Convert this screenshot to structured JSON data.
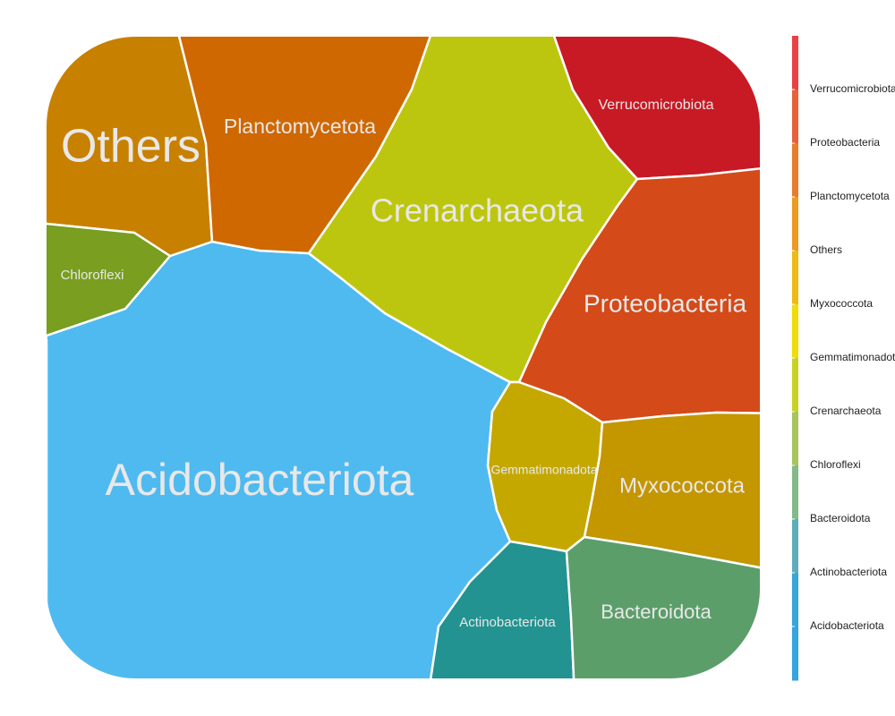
{
  "chart_data": {
    "type": "voronoi-treemap",
    "title": "",
    "cells": [
      {
        "name": "Acidobacteriota",
        "color": "#4FBAF0"
      },
      {
        "name": "Others",
        "color": "#C88000"
      },
      {
        "name": "Planctomycetota",
        "color": "#CF6800"
      },
      {
        "name": "Crenarchaeota",
        "color": "#BDC60E"
      },
      {
        "name": "Verrucomicrobiota",
        "color": "#C81A24"
      },
      {
        "name": "Proteobacteria",
        "color": "#D44A19"
      },
      {
        "name": "Chloroflexi",
        "color": "#799E20"
      },
      {
        "name": "Gemmatimonadota",
        "color": "#C4A800"
      },
      {
        "name": "Myxococcota",
        "color": "#C49600"
      },
      {
        "name": "Actinobacteriota",
        "color": "#229390"
      },
      {
        "name": "Bacteroidota",
        "color": "#5B9E6A"
      }
    ],
    "legend": {
      "position": "right",
      "labels": [
        "Verrucomicrobiota",
        "Proteobacteria",
        "Planctomycetota",
        "Others",
        "Myxococcota",
        "Gemmatimonadota",
        "Crenarchaeota",
        "Chloroflexi",
        "Bacteroidota",
        "Actinobacteriota",
        "Acidobacteriota"
      ],
      "colors": [
        "#E84146",
        "#E8603A",
        "#E77C2D",
        "#EC9A22",
        "#EDBA16",
        "#EFDC08",
        "#C8D226",
        "#A8C45E",
        "#84B98A",
        "#5FADBB",
        "#38A5DB",
        "#36A4DE"
      ]
    }
  }
}
